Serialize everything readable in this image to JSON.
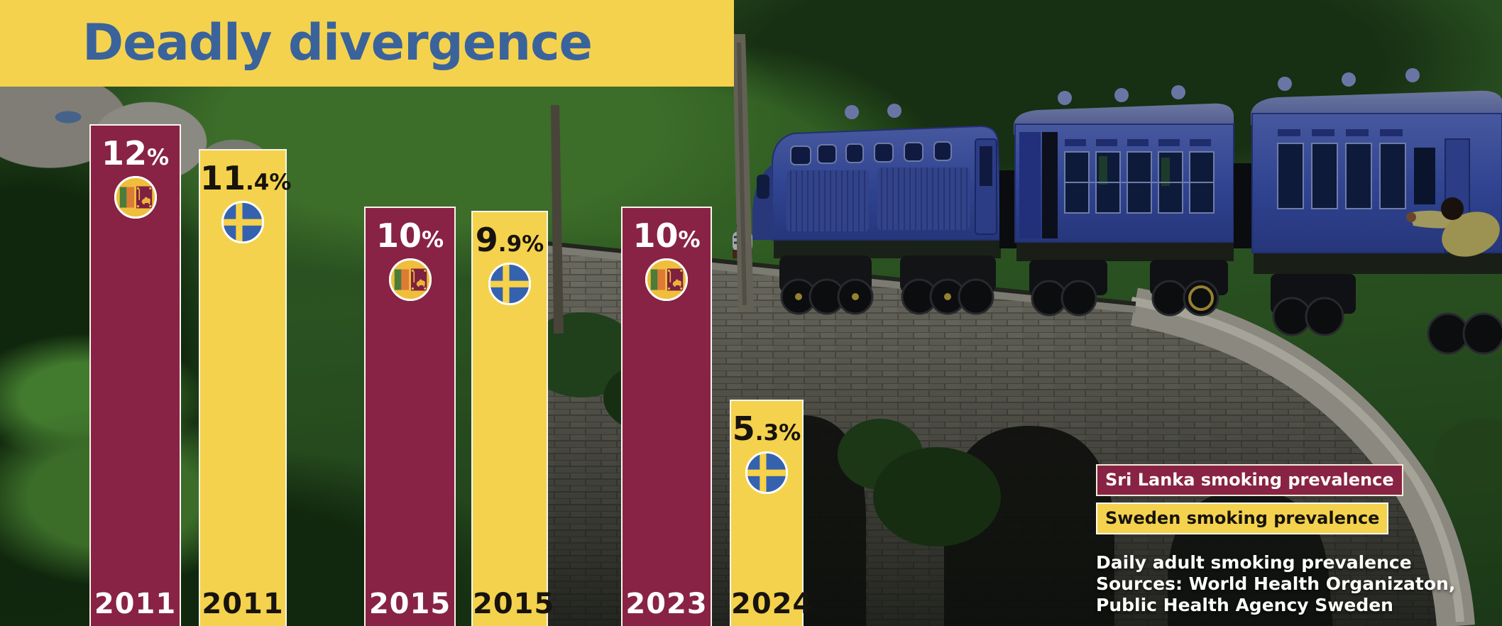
{
  "title": "Deadly divergence",
  "chart_data": {
    "type": "bar",
    "title": "Deadly divergence",
    "unit": "percent",
    "note": "Daily adult smoking prevalence",
    "sources": "World Health Organizaton, Public Health Agency Sweden",
    "value_range": [
      0,
      12
    ],
    "categories": [
      "2011",
      "2015",
      "2023/2024"
    ],
    "series": [
      {
        "name": "Sri Lanka smoking prevalence",
        "color": "#882345",
        "points": [
          {
            "year": "2011",
            "value": 12,
            "label": "12%",
            "label_main": "12",
            "label_small": "%"
          },
          {
            "year": "2015",
            "value": 10,
            "label": "10%",
            "label_main": "10",
            "label_small": "%"
          },
          {
            "year": "2023",
            "value": 10,
            "label": "10%",
            "label_main": "10",
            "label_small": "%"
          }
        ]
      },
      {
        "name": "Sweden smoking prevalence",
        "color": "#f4d24d",
        "points": [
          {
            "year": "2011",
            "value": 11.4,
            "label": "11.4%",
            "label_main": "11",
            "label_small": ".4%"
          },
          {
            "year": "2015",
            "value": 9.9,
            "label": "9.9%",
            "label_main": "9",
            "label_small": ".9%"
          },
          {
            "year": "2024",
            "value": 5.3,
            "label": "5.3%",
            "label_main": "5",
            "label_small": ".3%"
          }
        ]
      }
    ]
  },
  "legend": {
    "sri_lanka": "Sri Lanka smoking prevalence",
    "sweden": "Sweden smoking prevalence"
  },
  "caption": {
    "line1": "Daily adult smoking prevalence",
    "line2": "Sources: World Health Organizaton,",
    "line3": "Public Health Agency Sweden"
  },
  "icons": {
    "sri_lanka_flag": "sri-lanka-flag-icon",
    "sweden_flag": "sweden-flag-icon"
  },
  "colors": {
    "sri_lanka_maroon": "#882345",
    "sweden_yellow": "#f4d24d",
    "banner_yellow": "#f4d24d",
    "title_blue": "#3a639c",
    "label_on_maroon": "#ffffff",
    "label_on_yellow": "#17130d",
    "train_blue": "#3e57bd"
  }
}
